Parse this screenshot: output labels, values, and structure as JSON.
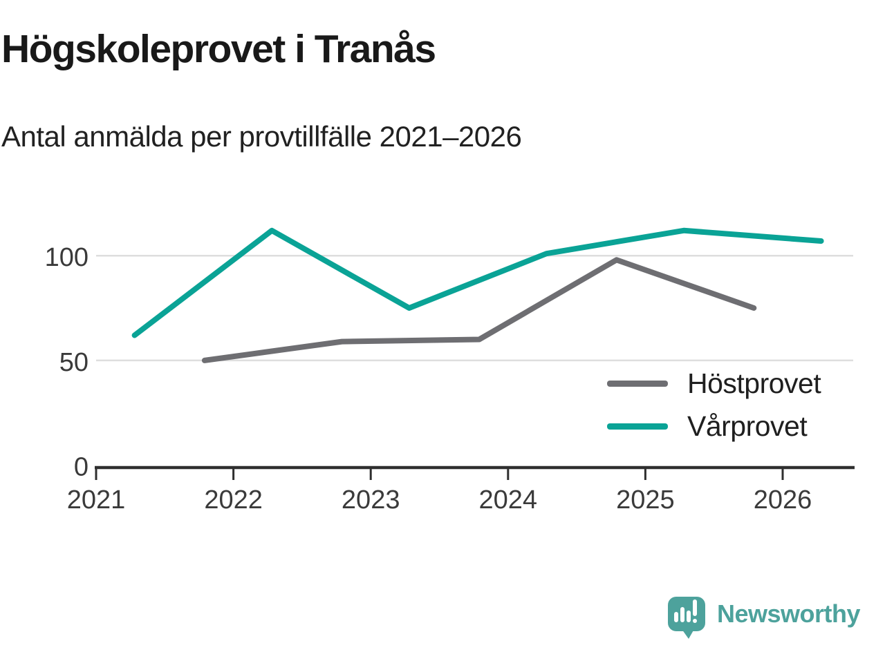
{
  "chart_data": {
    "type": "line",
    "title": "Högskoleprovet i Tranås",
    "subtitle": "Antal anmälda per provtillfälle 2021–2026",
    "x_ticks": [
      2021,
      2022,
      2023,
      2024,
      2025,
      2026
    ],
    "x_tick_labels": [
      "2021",
      "2022",
      "2023",
      "2024",
      "2025",
      "2026"
    ],
    "y_ticks": [
      0,
      50,
      100
    ],
    "y_tick_labels": [
      "0",
      "50",
      "100"
    ],
    "xlim": [
      2021,
      2026.55
    ],
    "ylim": [
      0,
      122
    ],
    "grid": "horizontal",
    "legend_position": "inside-right",
    "series": [
      {
        "name": "Höstprovet",
        "color": "#6e6e72",
        "x": [
          2021.79,
          2022.79,
          2023.79,
          2024.79,
          2025.79
        ],
        "values": [
          50,
          59,
          60,
          98,
          75
        ]
      },
      {
        "name": "Vårprovet",
        "color": "#0aa396",
        "x": [
          2021.28,
          2022.28,
          2023.28,
          2024.28,
          2025.28,
          2026.28
        ],
        "values": [
          62,
          112,
          75,
          101,
          112,
          107
        ]
      }
    ]
  },
  "colors": {
    "axis": "#2f2f2f",
    "grid": "#dedede",
    "tick_labels": "#3a3a3a",
    "title": "#191919",
    "subtitle": "#212121",
    "legend_text": "#1f1f1f"
  },
  "brand": {
    "name": "Newsworthy",
    "color": "#4da29c",
    "icon": "newsworthy-chart-bubble-icon"
  }
}
